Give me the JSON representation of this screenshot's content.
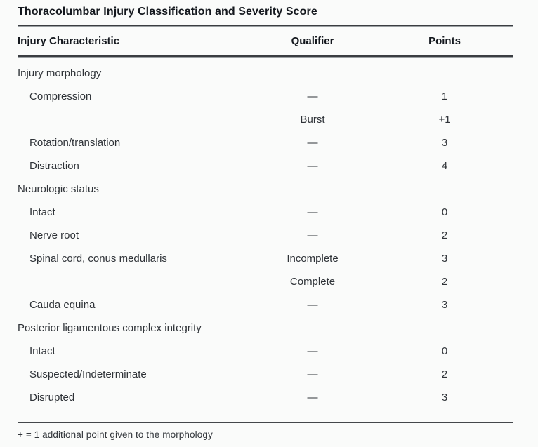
{
  "title": "Thoracolumbar Injury Classification and Severity Score",
  "footnote": "+ = 1 additional point given to the morphology",
  "colors": {
    "background": "#fafbfa",
    "body_text": "#2f3338",
    "heading_text": "#14181e",
    "rule": "#3e4145"
  },
  "table": {
    "headers": {
      "characteristic": "Injury Characteristic",
      "qualifier": "Qualifier",
      "points": "Points"
    },
    "empty_qualifier_glyph": "—",
    "sections": [
      {
        "name": "Injury morphology",
        "rows": [
          {
            "characteristic": "Compression",
            "qualifier": "—",
            "points": "1"
          },
          {
            "characteristic": "",
            "qualifier": "Burst",
            "points": "+1"
          },
          {
            "characteristic": "Rotation/translation",
            "qualifier": "—",
            "points": "3"
          },
          {
            "characteristic": "Distraction",
            "qualifier": "—",
            "points": "4"
          }
        ]
      },
      {
        "name": "Neurologic status",
        "rows": [
          {
            "characteristic": "Intact",
            "qualifier": "—",
            "points": "0"
          },
          {
            "characteristic": "Nerve root",
            "qualifier": "—",
            "points": "2"
          },
          {
            "characteristic": "Spinal cord, conus medullaris",
            "qualifier": "Incomplete",
            "points": "3"
          },
          {
            "characteristic": "",
            "qualifier": "Complete",
            "points": "2"
          },
          {
            "characteristic": "Cauda equina",
            "qualifier": "—",
            "points": "3"
          }
        ]
      },
      {
        "name": "Posterior ligamentous complex integrity",
        "rows": [
          {
            "characteristic": "Intact",
            "qualifier": "—",
            "points": "0"
          },
          {
            "characteristic": "Suspected/Indeterminate",
            "qualifier": "—",
            "points": "2"
          },
          {
            "characteristic": "Disrupted",
            "qualifier": "—",
            "points": "3"
          }
        ]
      }
    ]
  }
}
